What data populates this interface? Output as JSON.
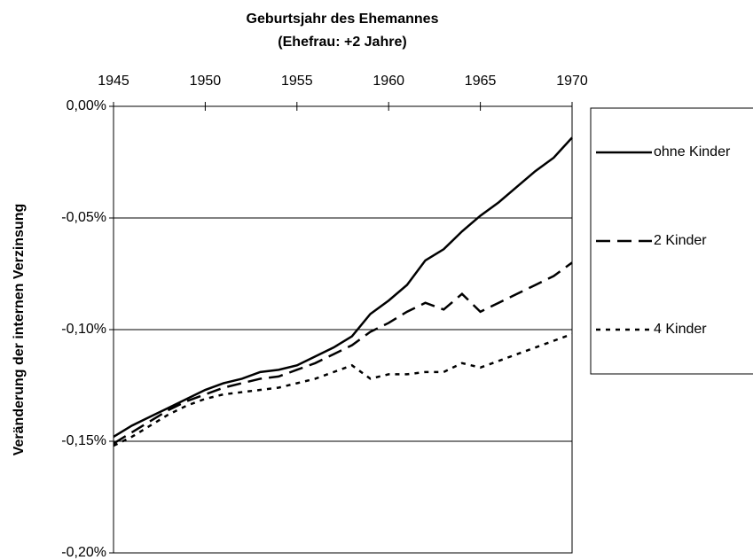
{
  "chart_data": {
    "type": "line",
    "title": "Geburtsjahr des Ehemannes",
    "subtitle": "(Ehefrau: +2 Jahre)",
    "y_label": "Veränderung der internen Verzinsung",
    "x": [
      1945,
      1946,
      1947,
      1948,
      1949,
      1950,
      1951,
      1952,
      1953,
      1954,
      1955,
      1956,
      1957,
      1958,
      1959,
      1960,
      1961,
      1962,
      1963,
      1964,
      1965,
      1966,
      1967,
      1968,
      1969,
      1970
    ],
    "xlim": [
      1945,
      1970
    ],
    "xticks": [
      1945,
      1950,
      1955,
      1960,
      1965,
      1970
    ],
    "ylim": [
      -0.2,
      0
    ],
    "yticks": [
      {
        "value": 0,
        "label": "0,00%"
      },
      {
        "value": -0.05,
        "label": "-0,05%"
      },
      {
        "value": -0.1,
        "label": "-0,10%"
      },
      {
        "value": -0.15,
        "label": "-0,15%"
      },
      {
        "value": -0.2,
        "label": "-0,20%"
      }
    ],
    "grid": true,
    "legend": "right",
    "series": [
      {
        "name": "ohne Kinder",
        "color": "#000000",
        "dash": "solid",
        "values": [
          -0.148,
          -0.143,
          -0.139,
          -0.135,
          -0.131,
          -0.127,
          -0.124,
          -0.122,
          -0.119,
          -0.118,
          -0.116,
          -0.112,
          -0.108,
          -0.103,
          -0.093,
          -0.087,
          -0.08,
          -0.069,
          -0.064,
          -0.056,
          -0.049,
          -0.043,
          -0.036,
          -0.029,
          -0.023,
          -0.014
        ]
      },
      {
        "name": "2 Kinder",
        "color": "#000000",
        "dash": "dashed",
        "values": [
          -0.151,
          -0.146,
          -0.141,
          -0.136,
          -0.132,
          -0.129,
          -0.126,
          -0.124,
          -0.122,
          -0.121,
          -0.118,
          -0.115,
          -0.111,
          -0.107,
          -0.101,
          -0.097,
          -0.092,
          -0.088,
          -0.091,
          -0.084,
          -0.092,
          -0.088,
          -0.084,
          -0.08,
          -0.076,
          -0.07
        ]
      },
      {
        "name": "4 Kinder",
        "color": "#000000",
        "dash": "dotted",
        "values": [
          -0.152,
          -0.148,
          -0.143,
          -0.138,
          -0.134,
          -0.131,
          -0.129,
          -0.128,
          -0.127,
          -0.126,
          -0.124,
          -0.122,
          -0.119,
          -0.116,
          -0.122,
          -0.12,
          -0.12,
          -0.119,
          -0.119,
          -0.115,
          -0.117,
          -0.114,
          -0.111,
          -0.108,
          -0.105,
          -0.102
        ]
      }
    ]
  }
}
